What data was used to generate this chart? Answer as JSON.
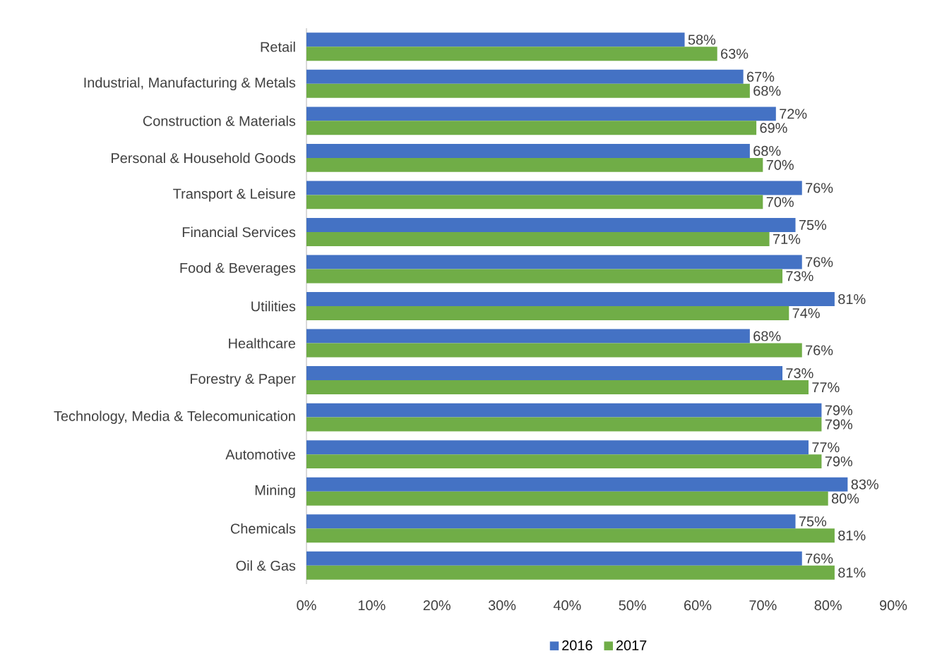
{
  "chart_data": {
    "type": "bar",
    "orientation": "horizontal",
    "categories": [
      "Retail",
      "Industrial, Manufacturing & Metals",
      "Construction & Materials",
      "Personal & Household Goods",
      "Transport & Leisure",
      "Financial Services",
      "Food & Beverages",
      "Utilities",
      "Healthcare",
      "Forestry & Paper",
      "Technology, Media & Telecomunication",
      "Automotive",
      "Mining",
      "Chemicals",
      "Oil & Gas"
    ],
    "series": [
      {
        "name": "2016",
        "color": "#4472c4",
        "values": [
          58,
          67,
          72,
          68,
          76,
          75,
          76,
          81,
          68,
          73,
          79,
          77,
          83,
          75,
          76
        ],
        "value_labels": [
          "58%",
          "67%",
          "72%",
          "68%",
          "76%",
          "75%",
          "76%",
          "81%",
          "68%",
          "73%",
          "79%",
          "77%",
          "83%",
          "75%",
          "76%"
        ]
      },
      {
        "name": "2017",
        "color": "#70ad47",
        "values": [
          63,
          68,
          69,
          70,
          70,
          71,
          73,
          74,
          76,
          77,
          79,
          79,
          80,
          81,
          81
        ],
        "value_labels": [
          "63%",
          "68%",
          "69%",
          "70%",
          "70%",
          "71%",
          "73%",
          "74%",
          "76%",
          "77%",
          "79%",
          "79%",
          "80%",
          "81%",
          "81%"
        ]
      }
    ],
    "xlim": [
      0,
      90
    ],
    "xticks": [
      {
        "value": 0,
        "label": "0%"
      },
      {
        "value": 10,
        "label": "10%"
      },
      {
        "value": 20,
        "label": "20%"
      },
      {
        "value": 30,
        "label": "30%"
      },
      {
        "value": 40,
        "label": "40%"
      },
      {
        "value": 50,
        "label": "50%"
      },
      {
        "value": 60,
        "label": "60%"
      },
      {
        "value": 70,
        "label": "70%"
      },
      {
        "value": 80,
        "label": "80%"
      },
      {
        "value": 90,
        "label": "90%"
      }
    ],
    "legend": "bottom",
    "grid": false
  }
}
